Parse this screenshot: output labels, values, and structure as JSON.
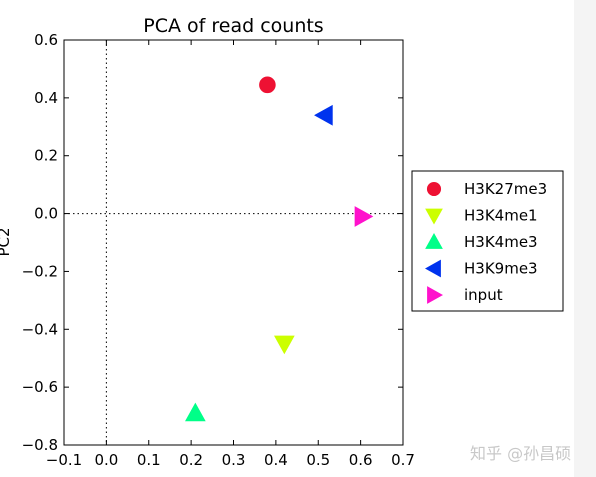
{
  "chart_data": {
    "type": "scatter",
    "title": "PCA of read counts",
    "xlabel": "",
    "ylabel": "PC2",
    "xlim": [
      -0.1,
      0.7
    ],
    "ylim": [
      -0.8,
      0.6
    ],
    "xticks": [
      "−0.1",
      "0.0",
      "0.1",
      "0.2",
      "0.3",
      "0.4",
      "0.5",
      "0.6",
      "0.7"
    ],
    "xtick_values": [
      -0.1,
      0.0,
      0.1,
      0.2,
      0.3,
      0.4,
      0.5,
      0.6,
      0.7
    ],
    "yticks": [
      "−0.8",
      "−0.6",
      "−0.4",
      "−0.2",
      "0.0",
      "0.2",
      "0.4",
      "0.6"
    ],
    "ytick_values": [
      -0.8,
      -0.6,
      -0.4,
      -0.2,
      0.0,
      0.2,
      0.4,
      0.6
    ],
    "zero_lines": "dotted",
    "legend_position": "right",
    "series": [
      {
        "name": "H3K27me3",
        "marker": "circle",
        "color": "#ee1133",
        "x": 0.38,
        "y": 0.445
      },
      {
        "name": "H3K4me1",
        "marker": "triangle-down",
        "color": "#ccff00",
        "x": 0.42,
        "y": -0.45
      },
      {
        "name": "H3K4me3",
        "marker": "triangle-up",
        "color": "#00ff88",
        "x": 0.21,
        "y": -0.69
      },
      {
        "name": "H3K9me3",
        "marker": "triangle-left",
        "color": "#0033ee",
        "x": 0.515,
        "y": 0.34
      },
      {
        "name": "input",
        "marker": "triangle-right",
        "color": "#ff11cc",
        "x": 0.605,
        "y": -0.01
      }
    ]
  },
  "watermark": "知乎 @孙昌硕"
}
